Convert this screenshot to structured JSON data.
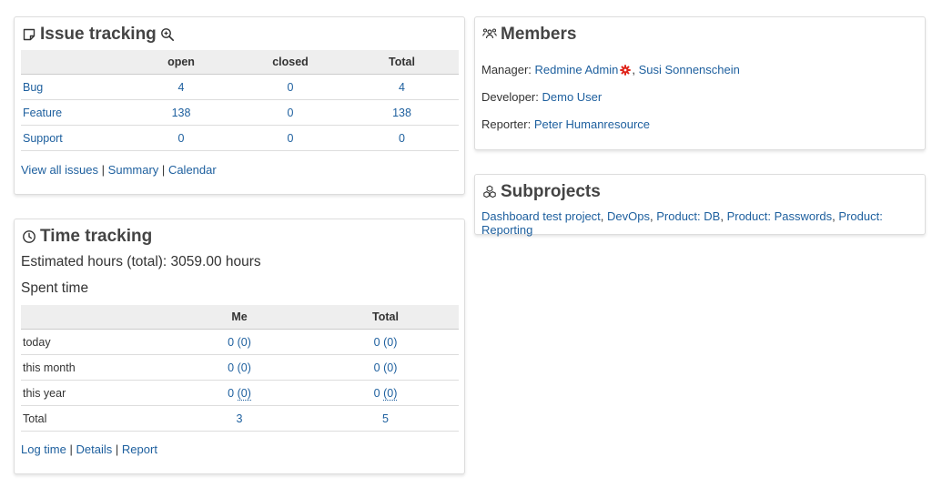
{
  "issue_tracking": {
    "title": "Issue tracking",
    "columns": [
      "",
      "open",
      "closed",
      "Total"
    ],
    "rows": [
      {
        "name": "Bug",
        "open": "4",
        "closed": "0",
        "total": "4"
      },
      {
        "name": "Feature",
        "open": "138",
        "closed": "0",
        "total": "138"
      },
      {
        "name": "Support",
        "open": "0",
        "closed": "0",
        "total": "0"
      }
    ],
    "links": [
      "View all issues",
      "Summary",
      "Calendar"
    ],
    "separator": "|"
  },
  "time_tracking": {
    "title": "Time tracking",
    "estimated": "Estimated hours (total): 3059.00 hours",
    "spent_title": "Spent time",
    "columns": [
      "",
      "Me",
      "Total"
    ],
    "rows": [
      {
        "label": "today",
        "me": "0",
        "me_paren": "(0)",
        "total": "0",
        "total_paren": "(0)"
      },
      {
        "label": "this month",
        "me": "0",
        "me_paren": "(0)",
        "total": "0",
        "total_paren": "(0)"
      },
      {
        "label": "this year",
        "me": "0",
        "me_paren": "(0)",
        "total": "0",
        "total_paren": "(0)"
      },
      {
        "label": "Total",
        "me": "3",
        "me_paren": "",
        "total": "5",
        "total_paren": ""
      }
    ],
    "links": [
      "Log time",
      "Details",
      "Report"
    ]
  },
  "members": {
    "title": "Members",
    "manager_label": "Manager:",
    "manager_1": "Redmine Admin",
    "manager_2": "Susi Sonnenschein",
    "developer_label": "Developer:",
    "developer": "Demo User",
    "reporter_label": "Reporter:",
    "reporter": "Peter Humanresource"
  },
  "subprojects": {
    "title": "Subprojects",
    "items": [
      "Dashboard test project",
      "DevOps",
      "Product: DB",
      "Product: Passwords",
      "Product: Reporting"
    ]
  },
  "colors": {
    "link": "#1d5f9e",
    "header_bg": "#eeeeee",
    "admin_gear": "#e0251b"
  },
  "icons": {
    "issue_tracking": "sticky-note-icon",
    "zoom": "zoom-in-icon",
    "time_tracking": "clock-icon",
    "members": "group-icon",
    "subprojects": "cubes-icon",
    "admin": "gear-icon"
  }
}
